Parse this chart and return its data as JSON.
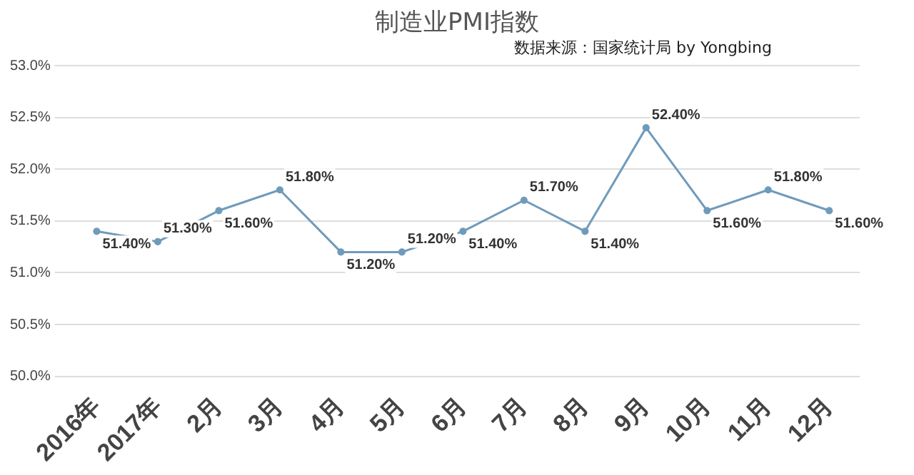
{
  "chart_data": {
    "type": "line",
    "title": "制造业PMI指数",
    "annotations": [
      "数据来源：国家统计局 by Yongbing"
    ],
    "categories": [
      "2016年",
      "2017年",
      "2月",
      "3月",
      "4月",
      "5月",
      "6月",
      "7月",
      "8月",
      "9月",
      "10月",
      "11月",
      "12月"
    ],
    "series": [
      {
        "color": "#6f9bbb",
        "values": [
          51.4,
          51.3,
          51.6,
          51.8,
          51.2,
          51.2,
          51.4,
          51.7,
          51.4,
          52.4,
          51.6,
          51.8,
          51.6
        ],
        "value_labels": [
          "51.40%",
          "51.30%",
          "51.60%",
          "51.80%",
          "51.20%",
          "51.20%",
          "51.40%",
          "51.70%",
          "51.40%",
          "52.40%",
          "51.60%",
          "51.80%",
          "51.60%"
        ]
      }
    ],
    "ylim": [
      50,
      53
    ],
    "yticks": [
      {
        "value": 50,
        "label": "50.0%"
      },
      {
        "value": 50.5,
        "label": "50.5%"
      },
      {
        "value": 51,
        "label": "51.0%"
      },
      {
        "value": 51.5,
        "label": "51.5%"
      },
      {
        "value": 52,
        "label": "52.0%"
      },
      {
        "value": 52.5,
        "label": "52.5%"
      },
      {
        "value": 53,
        "label": "53.0%"
      }
    ],
    "grid": "y",
    "legend": false,
    "marker": "circle",
    "line_style": "solid"
  }
}
